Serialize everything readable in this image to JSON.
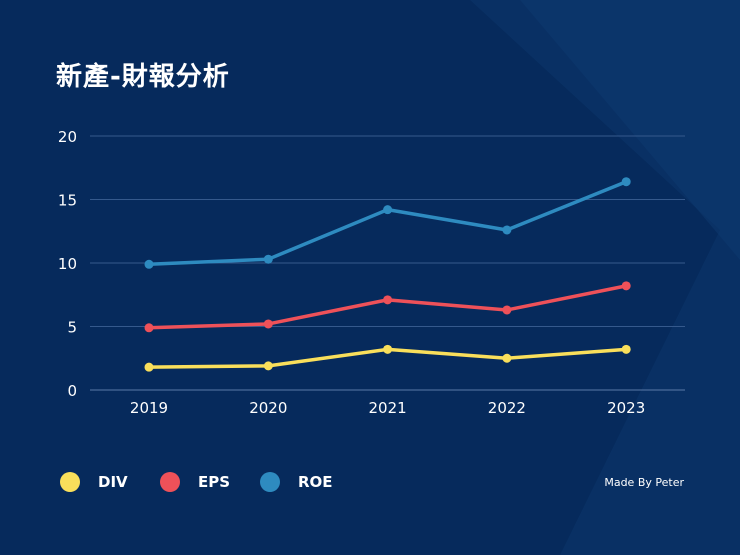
{
  "title": "新產-財報分析",
  "credit": "Made By Peter",
  "chart_data": {
    "type": "line",
    "title": "新產-財報分析",
    "categories": [
      "2019",
      "2020",
      "2021",
      "2022",
      "2023"
    ],
    "ylim": [
      0,
      20
    ],
    "yticks": [
      "0",
      "5",
      "10",
      "15",
      "20"
    ],
    "grid": true,
    "legend_placement": "bottom-left",
    "series": [
      {
        "name": "DIV",
        "color": "#f9df5b",
        "values": [
          1.8,
          1.9,
          3.2,
          2.5,
          3.2
        ]
      },
      {
        "name": "EPS",
        "color": "#ee5159",
        "values": [
          4.9,
          5.2,
          7.1,
          6.3,
          8.2
        ]
      },
      {
        "name": "ROE",
        "color": "#2e8bc0",
        "values": [
          9.9,
          10.3,
          14.2,
          12.6,
          16.4
        ]
      }
    ]
  }
}
